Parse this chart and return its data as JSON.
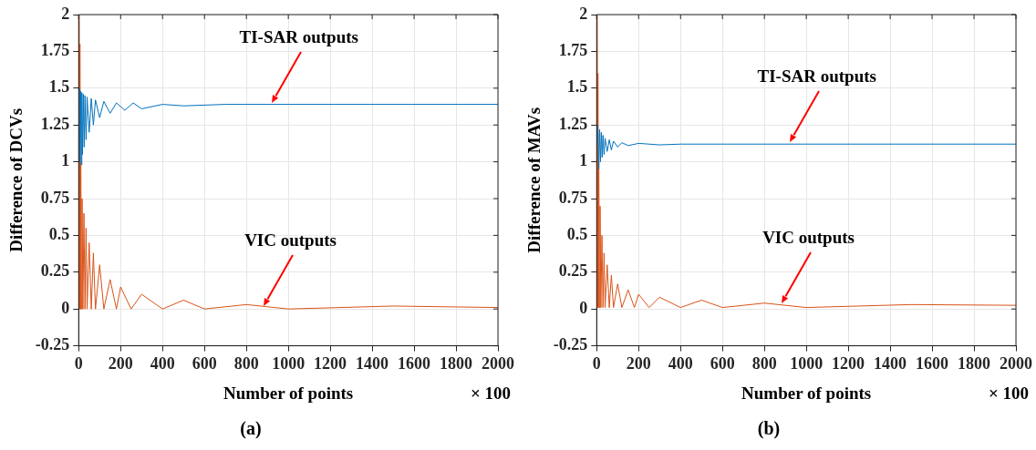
{
  "chart_data": [
    {
      "type": "line",
      "title": "(a)",
      "xlabel": "Number of points",
      "ylabel": "Difference of DCVs",
      "series": [
        {
          "color": "#0072bd",
          "x": [
            0,
            3,
            6,
            9,
            12,
            15,
            18,
            22,
            26,
            30,
            35,
            40,
            50,
            60,
            70,
            80,
            100,
            120,
            150,
            180,
            220,
            260,
            300,
            400,
            500,
            700,
            1000,
            2000
          ],
          "values": [
            1.4,
            1.5,
            1.0,
            1.48,
            0.98,
            1.47,
            1.05,
            1.46,
            1.1,
            1.45,
            1.15,
            1.44,
            1.2,
            1.43,
            1.25,
            1.42,
            1.3,
            1.41,
            1.33,
            1.4,
            1.35,
            1.4,
            1.36,
            1.39,
            1.38,
            1.39,
            1.39,
            1.39
          ]
        },
        {
          "color": "#d95319",
          "x": [
            0,
            2,
            4,
            6,
            8,
            10,
            13,
            16,
            20,
            25,
            30,
            35,
            40,
            50,
            60,
            70,
            80,
            100,
            120,
            150,
            180,
            200,
            250,
            300,
            400,
            500,
            600,
            800,
            1000,
            1500,
            2000
          ],
          "values": [
            0,
            2,
            0,
            1.8,
            0,
            1.0,
            0,
            0.75,
            0,
            0.65,
            0,
            0.55,
            0,
            0.45,
            0,
            0.38,
            0,
            0.3,
            0,
            0.2,
            0,
            0.15,
            0,
            0.1,
            0,
            0.06,
            0,
            0.03,
            0,
            0.02,
            0.01
          ]
        }
      ],
      "xlim": [
        0,
        2000
      ],
      "xticks": [
        0,
        200,
        400,
        600,
        800,
        1000,
        1200,
        1400,
        1600,
        1800,
        2000
      ],
      "ylim": [
        -0.25,
        2
      ],
      "yticks": [
        -0.25,
        0,
        0.25,
        0.5,
        0.75,
        1,
        1.25,
        1.5,
        1.75,
        2
      ],
      "grid": true,
      "annotations": [
        "TI-SAR outputs",
        "VIC outputs",
        "× 100"
      ]
    },
    {
      "type": "line",
      "title": "(b)",
      "xlabel": "Number of points",
      "ylabel": "Difference of MAVs",
      "series": [
        {
          "color": "#0072bd",
          "x": [
            0,
            5,
            10,
            14,
            18,
            22,
            26,
            30,
            35,
            40,
            50,
            60,
            70,
            80,
            100,
            120,
            150,
            200,
            300,
            400,
            600,
            1000,
            2000
          ],
          "values": [
            1.1,
            1.25,
            0.95,
            1.22,
            1.0,
            1.2,
            1.03,
            1.18,
            1.05,
            1.16,
            1.07,
            1.15,
            1.08,
            1.14,
            1.1,
            1.13,
            1.11,
            1.125,
            1.115,
            1.12,
            1.12,
            1.12,
            1.12
          ]
        },
        {
          "color": "#d95319",
          "x": [
            0,
            2,
            4,
            6,
            8,
            10,
            13,
            16,
            20,
            25,
            30,
            35,
            40,
            50,
            60,
            70,
            80,
            100,
            120,
            150,
            180,
            200,
            250,
            300,
            400,
            500,
            600,
            800,
            1000,
            1500,
            2000
          ],
          "values": [
            0.01,
            2,
            0.01,
            1.6,
            0.01,
            1.0,
            0.01,
            0.7,
            0.01,
            0.5,
            0.01,
            0.38,
            0.01,
            0.3,
            0.01,
            0.23,
            0.01,
            0.17,
            0.01,
            0.13,
            0.01,
            0.1,
            0.01,
            0.08,
            0.01,
            0.06,
            0.01,
            0.04,
            0.01,
            0.03,
            0.025
          ]
        }
      ],
      "xlim": [
        0,
        2000
      ],
      "xticks": [
        0,
        200,
        400,
        600,
        800,
        1000,
        1200,
        1400,
        1600,
        1800,
        2000
      ],
      "ylim": [
        -0.25,
        2
      ],
      "yticks": [
        -0.25,
        0,
        0.25,
        0.5,
        0.75,
        1,
        1.25,
        1.5,
        1.75,
        2
      ],
      "grid": true,
      "annotations": [
        "TI-SAR outputs",
        "VIC outputs",
        "× 100"
      ]
    }
  ]
}
